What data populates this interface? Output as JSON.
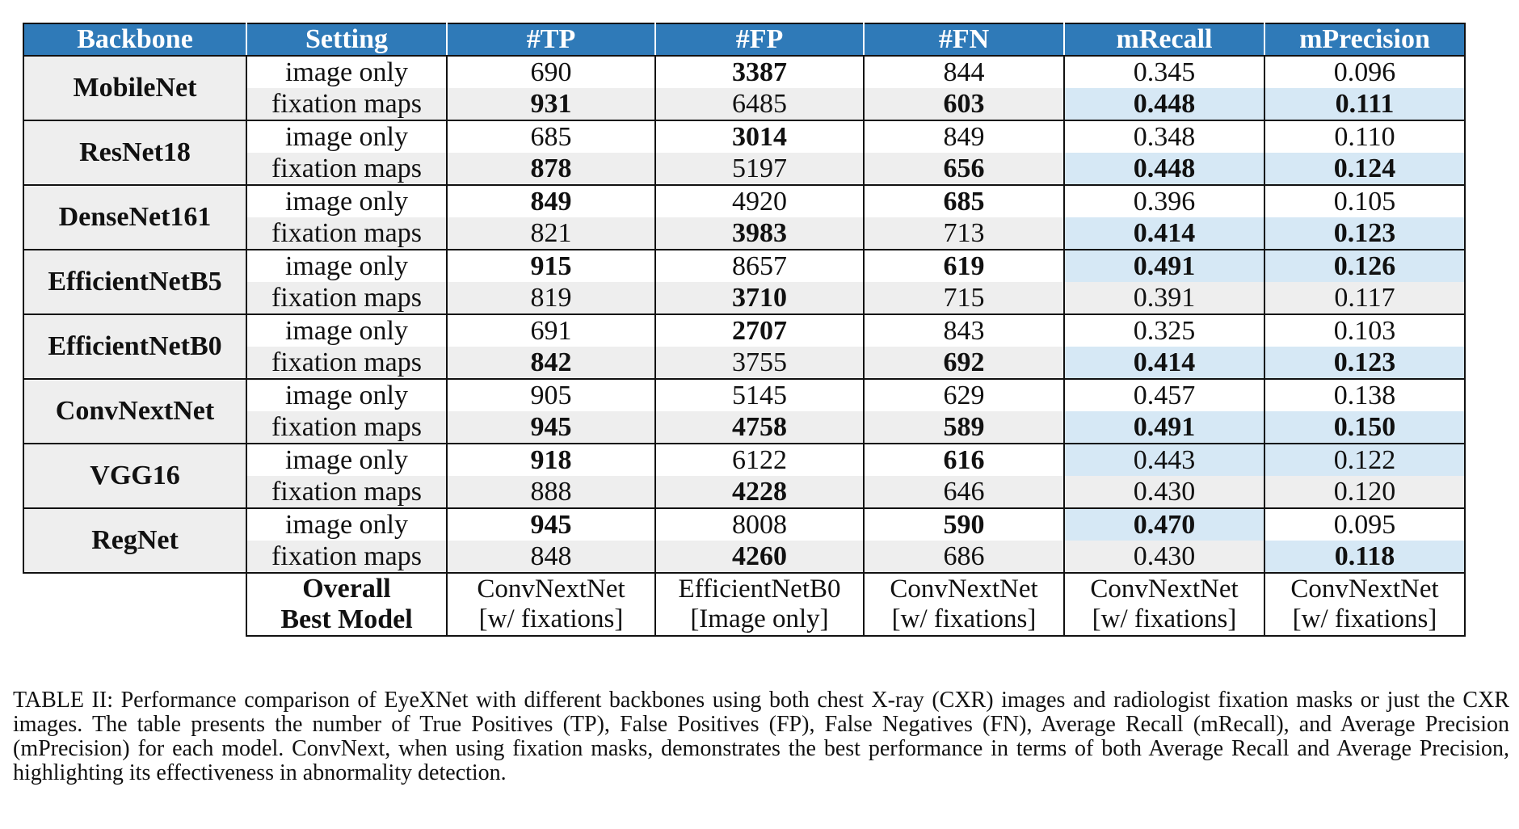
{
  "table": {
    "headers": [
      "Backbone",
      "Setting",
      "#TP",
      "#FP",
      "#FN",
      "mRecall",
      "mPrecision"
    ],
    "rows": [
      {
        "backbone": "MobileNet",
        "image": [
          "image only",
          "690",
          "3387",
          "844",
          "0.345",
          "0.096"
        ],
        "fix": [
          "fixation maps",
          "931",
          "6485",
          "603",
          "0.448",
          "0.111"
        ]
      },
      {
        "backbone": "ResNet18",
        "image": [
          "image only",
          "685",
          "3014",
          "849",
          "0.348",
          "0.110"
        ],
        "fix": [
          "fixation maps",
          "878",
          "5197",
          "656",
          "0.448",
          "0.124"
        ]
      },
      {
        "backbone": "DenseNet161",
        "image": [
          "image only",
          "849",
          "4920",
          "685",
          "0.396",
          "0.105"
        ],
        "fix": [
          "fixation maps",
          "821",
          "3983",
          "713",
          "0.414",
          "0.123"
        ]
      },
      {
        "backbone": "EfficientNetB5",
        "image": [
          "image only",
          "915",
          "8657",
          "619",
          "0.491",
          "0.126"
        ],
        "fix": [
          "fixation maps",
          "819",
          "3710",
          "715",
          "0.391",
          "0.117"
        ]
      },
      {
        "backbone": "EfficientNetB0",
        "image": [
          "image only",
          "691",
          "2707",
          "843",
          "0.325",
          "0.103"
        ],
        "fix": [
          "fixation maps",
          "842",
          "3755",
          "692",
          "0.414",
          "0.123"
        ]
      },
      {
        "backbone": "ConvNextNet",
        "image": [
          "image only",
          "905",
          "5145",
          "629",
          "0.457",
          "0.138"
        ],
        "fix": [
          "fixation maps",
          "945",
          "4758",
          "589",
          "0.491",
          "0.150"
        ]
      },
      {
        "backbone": "VGG16",
        "image": [
          "image only",
          "918",
          "6122",
          "616",
          "0.443",
          "0.122"
        ],
        "fix": [
          "fixation maps",
          "888",
          "4228",
          "646",
          "0.430",
          "0.120"
        ]
      },
      {
        "backbone": "RegNet",
        "image": [
          "image only",
          "945",
          "8008",
          "590",
          "0.470",
          "0.095"
        ],
        "fix": [
          "fixation maps",
          "848",
          "4260",
          "686",
          "0.430",
          "0.118"
        ]
      }
    ],
    "overall": {
      "label_line1": "Overall",
      "label_line2": "Best Model",
      "cells": [
        [
          "ConvNextNet",
          "[w/ fixations]"
        ],
        [
          "EfficientNetB0",
          "[Image only]"
        ],
        [
          "ConvNextNet",
          "[w/ fixations]"
        ],
        [
          "ConvNextNet",
          "[w/ fixations]"
        ],
        [
          "ConvNextNet",
          "[w/ fixations]"
        ]
      ]
    },
    "colors": {
      "header_bg": "#2f7ab8",
      "highlight_bg": "#d6e8f5",
      "shade_bg": "#eeeeee"
    }
  },
  "caption": {
    "label": "TABLE II:",
    "text": "Performance comparison of EyeXNet with different backbones using both chest X-ray (CXR) images and radiologist fixation masks or just the CXR images. The table presents the number of True Positives (TP), False Positives (FP), False Negatives (FN), Average Recall (mRecall), and Average Precision (mPrecision) for each model. ConvNext, when using fixation masks, demonstrates the best performance in terms of both Average Recall and Average Precision, highlighting its effectiveness in abnormality detection."
  }
}
